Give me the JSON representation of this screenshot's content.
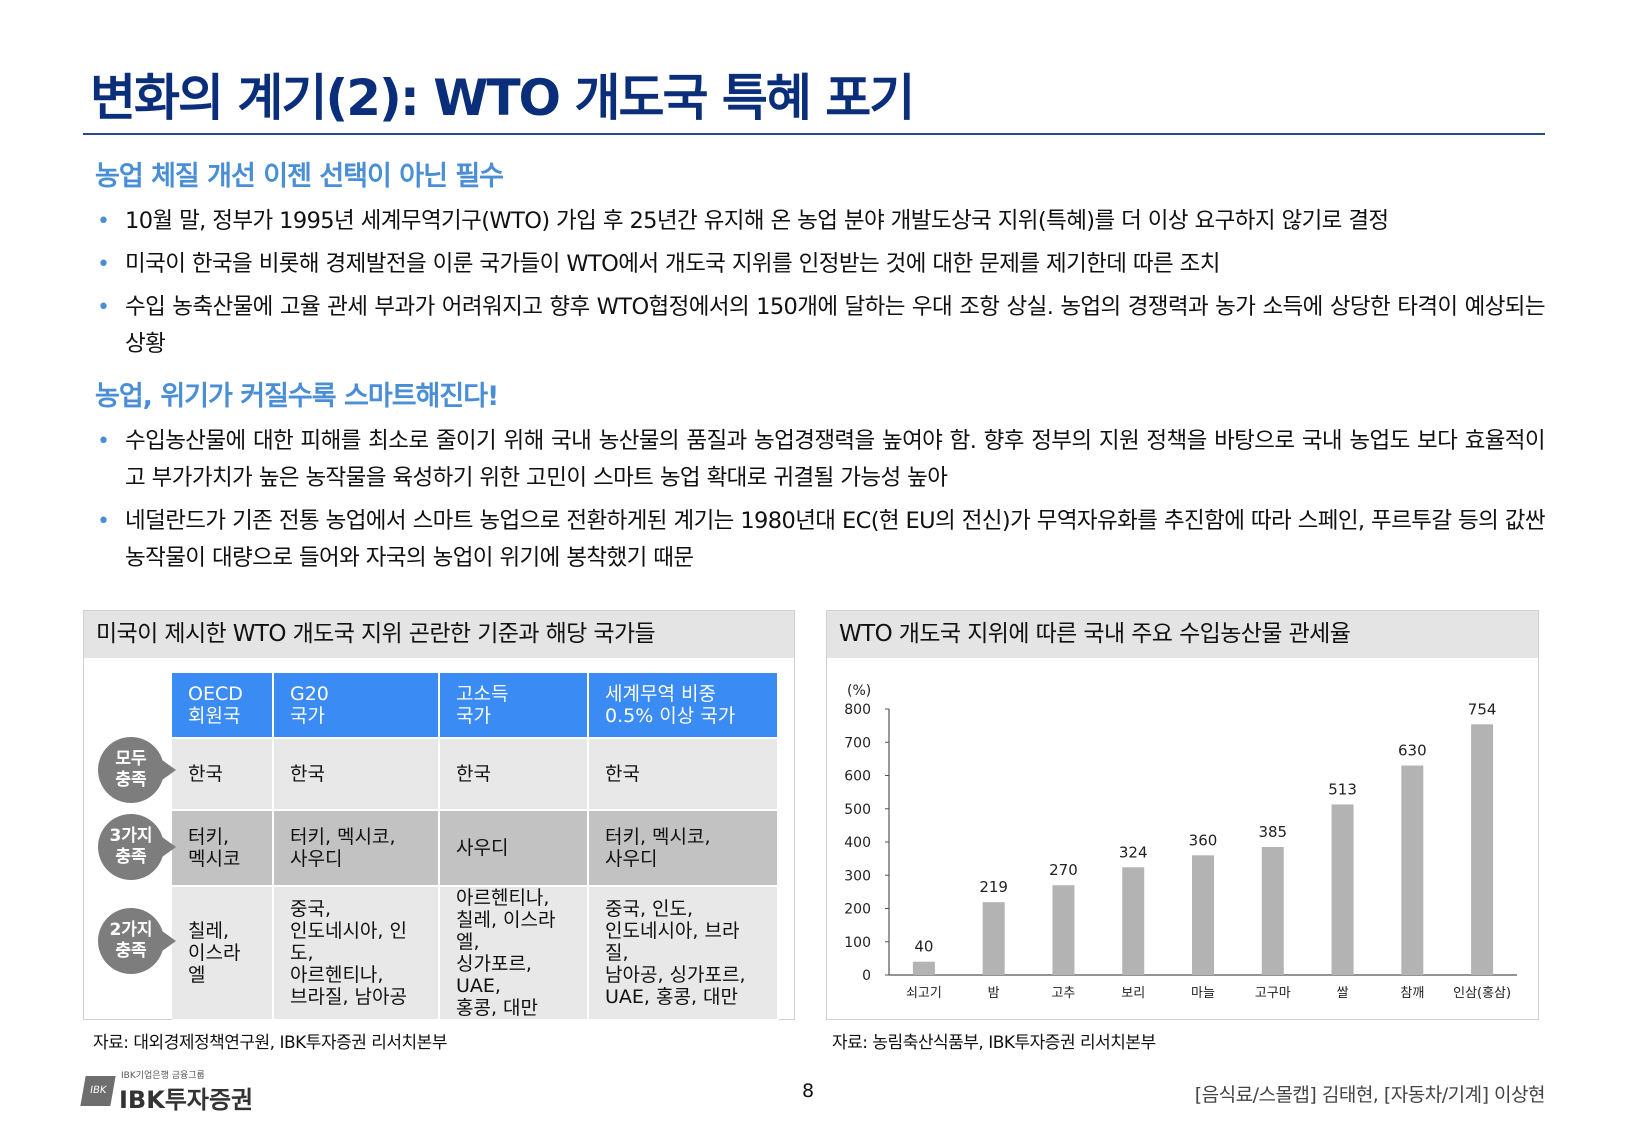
{
  "title": "변화의 계기(2): WTO 개도국 특혜 포기",
  "sections": [
    {
      "heading": "농업 체질 개선 이젠 선택이 아닌 필수",
      "bullets": [
        "10월 말, 정부가 1995년 세계무역기구(WTO) 가입 후 25년간 유지해 온 농업 분야 개발도상국 지위(특혜)를 더 이상 요구하지 않기로 결정",
        "미국이 한국을 비롯해 경제발전을 이룬 국가들이 WTO에서 개도국 지위를 인정받는 것에 대한 문제를 제기한데 따른 조치",
        "수입 농축산물에 고율 관세 부과가 어려워지고 향후 WTO협정에서의 150개에 달하는 우대 조항 상실. 농업의 경쟁력과 농가 소득에 상당한 타격이 예상되는 상황"
      ]
    },
    {
      "heading": "농업, 위기가 커질수록 스마트해진다!",
      "bullets": [
        "수입농산물에 대한 피해를 최소로 줄이기 위해 국내 농산물의 품질과 농업경쟁력을 높여야 함. 향후 정부의 지원 정책을 바탕으로 국내 농업도 보다 효율적이고 부가가치가 높은 농작물을 육성하기 위한 고민이 스마트 농업 확대로 귀결될 가능성 높아",
        "네덜란드가 기존 전통 농업에서 스마트 농업으로 전환하게된 계기는 1980년대 EC(현 EU의 전신)가 무역자유화를 추진함에 따라 스페인, 푸르투갈 등의 값싼 농작물이 대량으로 들어와 자국의 농업이 위기에 봉착했기 때문"
      ]
    }
  ],
  "left_panel": {
    "title": "미국이 제시한 WTO 개도국 지위 곤란한 기준과 해당 국가들",
    "headers": [
      "OECD\n회원국",
      "G20\n국가",
      "고소득\n국가",
      "세계무역 비중\n0.5% 이상 국가"
    ],
    "rows": [
      {
        "badge": "모두\n충족",
        "cells": [
          "한국",
          "한국",
          "한국",
          "한국"
        ]
      },
      {
        "badge": "3가지\n충족",
        "cells": [
          "터키,\n멕시코",
          "터키, 멕시코,\n사우디",
          "사우디",
          "터키, 멕시코,\n사우디"
        ]
      },
      {
        "badge": "2가지\n충족",
        "cells": [
          "칠레,\n이스라엘",
          "중국,\n인도네시아, 인도,\n아르헨티나,\n브라질, 남아공",
          "아르헨티나,\n칠레, 이스라엘,\n싱가포르, UAE,\n홍콩, 대만",
          "중국, 인도,\n인도네시아, 브라질,\n남아공, 싱가포르,\nUAE, 홍콩, 대만"
        ]
      }
    ],
    "source": "자료: 대외경제정책연구원, IBK투자증권 리서치본부"
  },
  "right_panel": {
    "title": "WTO 개도국 지위에 따른 국내 주요 수입농산물 관세율",
    "source": "자료: 농림축산식품부, IBK투자증권 리서치본부"
  },
  "chart_data": {
    "type": "bar",
    "title": "WTO 개도국 지위에 따른 국내 주요 수입농산물 관세율",
    "ylabel": "(%)",
    "xlabel": "",
    "categories": [
      "쇠고기",
      "밤",
      "고추",
      "보리",
      "마늘",
      "고구마",
      "쌀",
      "참깨",
      "인삼(홍삼)"
    ],
    "values": [
      40,
      219,
      270,
      324,
      360,
      385,
      513,
      630,
      754
    ],
    "ylim": [
      0,
      800
    ],
    "yticks": [
      0,
      100,
      200,
      300,
      400,
      500,
      600,
      700,
      800
    ],
    "bar_color": "#b3b3b3",
    "grid": false,
    "data_labels": true
  },
  "footer": {
    "page": "8",
    "authors": "[음식료/스몰캡] 김태현, [자동차/기계] 이상현",
    "logo_small": "IBK기업은행 금융그룹",
    "logo_main": "IBK투자증권",
    "logo_mark": "IBK"
  },
  "colors": {
    "title": "#0b2e7a",
    "accent": "#4a8fd6",
    "table_header": "#3b8bf5",
    "badge": "#7d7d7d"
  }
}
